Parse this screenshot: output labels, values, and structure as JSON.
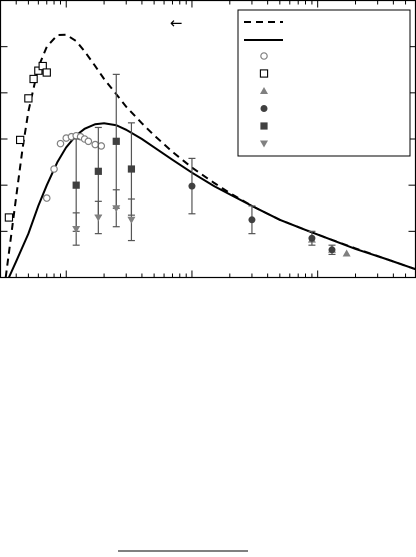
{
  "figure": {
    "arrow_glyph": "←"
  },
  "chart_data": {
    "type": "scatter",
    "x_scale": "log",
    "xlim": [
      0.03,
      60
    ],
    "ylim": [
      0,
      6
    ],
    "grid": false,
    "legend_placement": "top-right",
    "curves": [
      {
        "style": "dashed",
        "color": "#000000",
        "x": [
          0.033,
          0.036,
          0.04,
          0.045,
          0.05,
          0.06,
          0.07,
          0.085,
          0.1,
          0.12,
          0.14,
          0.17,
          0.2,
          0.25,
          0.3,
          0.4,
          0.5,
          0.7,
          1.0,
          1.5,
          2,
          3,
          5,
          8,
          12,
          20,
          35,
          60
        ],
        "y": [
          0.0,
          0.8,
          1.75,
          2.8,
          3.6,
          4.55,
          5.0,
          5.25,
          5.26,
          5.12,
          4.9,
          4.58,
          4.3,
          3.97,
          3.7,
          3.34,
          3.08,
          2.72,
          2.38,
          2.05,
          1.83,
          1.55,
          1.25,
          1.03,
          0.85,
          0.63,
          0.4,
          0.18
        ]
      },
      {
        "style": "solid",
        "color": "#000000",
        "x": [
          0.035,
          0.04,
          0.05,
          0.06,
          0.07,
          0.085,
          0.1,
          0.12,
          0.14,
          0.17,
          0.2,
          0.25,
          0.3,
          0.4,
          0.5,
          0.7,
          1.0,
          1.5,
          2,
          3,
          5,
          8,
          12,
          20,
          35,
          60
        ],
        "y": [
          0.0,
          0.35,
          0.95,
          1.55,
          2.0,
          2.5,
          2.82,
          3.08,
          3.22,
          3.32,
          3.34,
          3.3,
          3.2,
          3.0,
          2.82,
          2.55,
          2.27,
          1.98,
          1.8,
          1.55,
          1.25,
          1.03,
          0.85,
          0.62,
          0.4,
          0.18
        ]
      }
    ],
    "series": [
      {
        "marker": "open-circle",
        "color": "#808080",
        "points": [
          {
            "x": 0.07,
            "y": 1.72
          },
          {
            "x": 0.08,
            "y": 2.35
          },
          {
            "x": 0.09,
            "y": 2.9
          },
          {
            "x": 0.1,
            "y": 3.02
          },
          {
            "x": 0.11,
            "y": 3.05
          },
          {
            "x": 0.12,
            "y": 3.07
          },
          {
            "x": 0.13,
            "y": 3.05
          },
          {
            "x": 0.14,
            "y": 3.0
          },
          {
            "x": 0.15,
            "y": 2.95
          },
          {
            "x": 0.17,
            "y": 2.88
          },
          {
            "x": 0.19,
            "y": 2.85
          }
        ]
      },
      {
        "marker": "open-square",
        "color": "#000000",
        "points": [
          {
            "x": 0.035,
            "y": 1.3
          },
          {
            "x": 0.043,
            "y": 2.98
          },
          {
            "x": 0.05,
            "y": 3.88
          },
          {
            "x": 0.055,
            "y": 4.3
          },
          {
            "x": 0.06,
            "y": 4.48
          },
          {
            "x": 0.065,
            "y": 4.58
          },
          {
            "x": 0.07,
            "y": 4.44
          }
        ]
      },
      {
        "marker": "filled-triangle-up",
        "color": "#808080",
        "points": [
          {
            "x": 9,
            "y": 0.82
          },
          {
            "x": 13,
            "y": 0.6
          },
          {
            "x": 17,
            "y": 0.52
          }
        ]
      },
      {
        "marker": "filled-circle",
        "color": "#404040",
        "points": [
          {
            "x": 1.0,
            "y": 1.98,
            "yerr": 0.6
          },
          {
            "x": 3.0,
            "y": 1.25,
            "yerr": 0.3
          },
          {
            "x": 9,
            "y": 0.85,
            "yerr": 0.15
          },
          {
            "x": 13,
            "y": 0.6,
            "yerr": 0.1
          }
        ]
      },
      {
        "marker": "filled-square",
        "color": "#404040",
        "points": [
          {
            "x": 0.12,
            "y": 2.0,
            "yerr": 1.0
          },
          {
            "x": 0.18,
            "y": 2.3,
            "yerr": 0.95
          },
          {
            "x": 0.25,
            "y": 2.95,
            "yerr": 1.45
          },
          {
            "x": 0.33,
            "y": 2.35,
            "yerr": 1.0
          }
        ]
      },
      {
        "marker": "filled-triangle-down",
        "color": "#808080",
        "points": [
          {
            "x": 0.12,
            "y": 1.05,
            "yerr": 0.35
          },
          {
            "x": 0.18,
            "y": 1.3,
            "yerr": 0.35
          },
          {
            "x": 0.25,
            "y": 1.5,
            "yerr": 0.4
          },
          {
            "x": 0.33,
            "y": 1.25,
            "yerr": 0.45
          }
        ]
      }
    ]
  }
}
